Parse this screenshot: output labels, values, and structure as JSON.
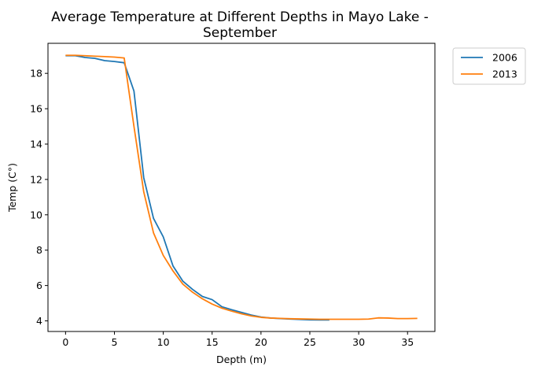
{
  "chart_data": {
    "type": "line",
    "title_lines": [
      "Average Temperature at Different Depths in Mayo Lake -",
      "September"
    ],
    "xlabel": "Depth (m)",
    "ylabel": "Temp (C°)",
    "xlim": [
      -1.8,
      37.8
    ],
    "ylim": [
      3.4,
      19.7
    ],
    "xticks": [
      0,
      5,
      10,
      15,
      20,
      25,
      30,
      35
    ],
    "yticks": [
      4,
      6,
      8,
      10,
      12,
      14,
      16,
      18
    ],
    "grid": false,
    "legend_position": "outside-top-right",
    "series": [
      {
        "name": "2006",
        "color": "#1f77b4",
        "x": [
          0,
          1,
          2,
          3,
          4,
          5,
          6,
          7,
          8,
          9,
          10,
          11,
          12,
          13,
          14,
          15,
          16,
          17,
          18,
          19,
          20,
          21,
          22,
          23,
          24,
          25,
          26,
          27
        ],
        "y": [
          19.0,
          19.0,
          18.9,
          18.85,
          18.72,
          18.67,
          18.6,
          17.0,
          12.1,
          9.8,
          8.75,
          7.1,
          6.25,
          5.78,
          5.38,
          5.2,
          4.8,
          4.63,
          4.48,
          4.33,
          4.22,
          4.16,
          4.13,
          4.1,
          4.08,
          4.06,
          4.05,
          4.05
        ]
      },
      {
        "name": "2013",
        "color": "#ff7f0e",
        "x": [
          0,
          1,
          2,
          3,
          4,
          5,
          6,
          7,
          8,
          9,
          10,
          11,
          12,
          13,
          14,
          15,
          16,
          17,
          18,
          19,
          20,
          21,
          22,
          23,
          24,
          25,
          26,
          27,
          28,
          29,
          30,
          31,
          32,
          33,
          34,
          35,
          36
        ],
        "y": [
          19.02,
          19.02,
          19.0,
          18.97,
          18.95,
          18.92,
          18.87,
          15.0,
          11.3,
          8.98,
          7.7,
          6.82,
          6.08,
          5.62,
          5.25,
          4.95,
          4.72,
          4.55,
          4.4,
          4.28,
          4.2,
          4.16,
          4.14,
          4.12,
          4.11,
          4.1,
          4.09,
          4.09,
          4.09,
          4.09,
          4.09,
          4.1,
          4.17,
          4.16,
          4.13,
          4.13,
          4.14
        ]
      }
    ]
  }
}
